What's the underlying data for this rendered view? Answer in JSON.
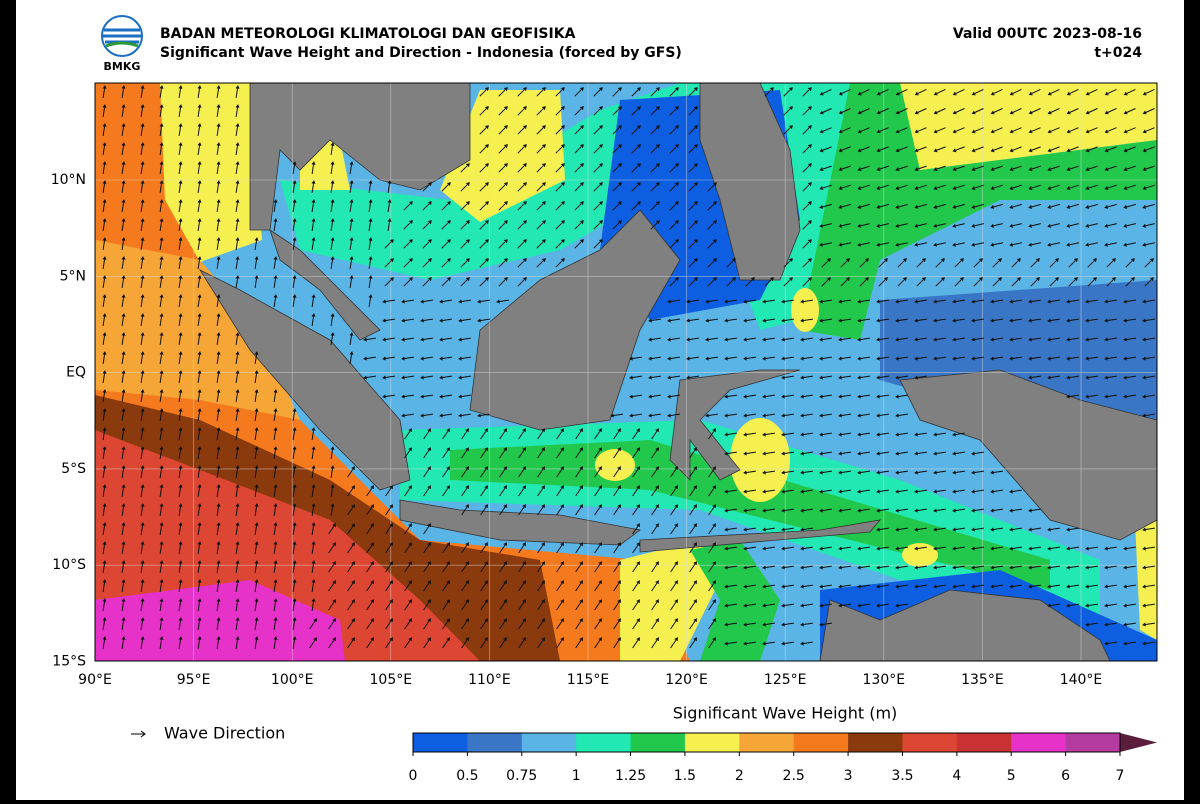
{
  "header": {
    "logo": "BMKG",
    "agency": "BADAN METEOROLOGI KLIMATOLOGI DAN GEOFISIKA",
    "title": "Significant Wave Height and Direction - Indonesia (forced by GFS)",
    "valid": "Valid 00UTC 2023-08-16",
    "lead": "t+024"
  },
  "map": {
    "lat_labels": [
      "10°N",
      "5°N",
      "EQ",
      "5°S",
      "10°S",
      "15°S"
    ],
    "lon_labels": [
      "90°E",
      "95°E",
      "100°E",
      "105°E",
      "110°E",
      "115°E",
      "120°E",
      "125°E",
      "130°E",
      "135°E",
      "140°E"
    ]
  },
  "legend": {
    "arrow_label": "Wave Direction"
  },
  "colorbar": {
    "title": "Significant Wave Height (m)",
    "levels": [
      0,
      0.5,
      0.75,
      1,
      1.25,
      1.5,
      2,
      2.5,
      3,
      3.5,
      4,
      5,
      6,
      7
    ],
    "colors": [
      "#0d5ee0",
      "#3a76c6",
      "#5ab4e6",
      "#22e8b4",
      "#22c84c",
      "#f5f050",
      "#f5a636",
      "#f57a1e",
      "#8b3a0e",
      "#dc4632",
      "#c83232",
      "#e632c8",
      "#b43ca0"
    ],
    "extend_color": "#5a1e3c"
  }
}
